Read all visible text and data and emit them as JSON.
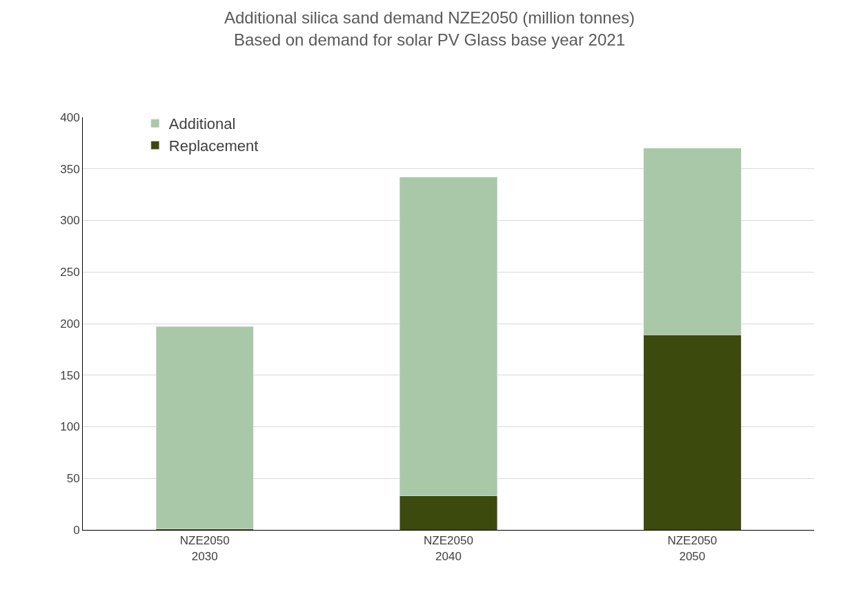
{
  "chart_data": {
    "type": "bar",
    "title": "Additional silica sand demand NZE2050 (million tonnes)\nBased on demand for solar PV Glass base year 2021",
    "categories": [
      "NZE2050\n2030",
      "NZE2050\n2040",
      "NZE2050\n2050"
    ],
    "stacked": true,
    "series": [
      {
        "name": "Replacement",
        "color": "#3d4a0e",
        "values": [
          1,
          33,
          189
        ]
      },
      {
        "name": "Additional",
        "color": "#a9c8a8",
        "values": [
          196,
          309,
          181
        ]
      }
    ],
    "ylim": [
      0,
      400
    ],
    "yticks": [
      0,
      50,
      100,
      150,
      200,
      250,
      300,
      350,
      400
    ],
    "grid": "y",
    "legend": "top left"
  }
}
